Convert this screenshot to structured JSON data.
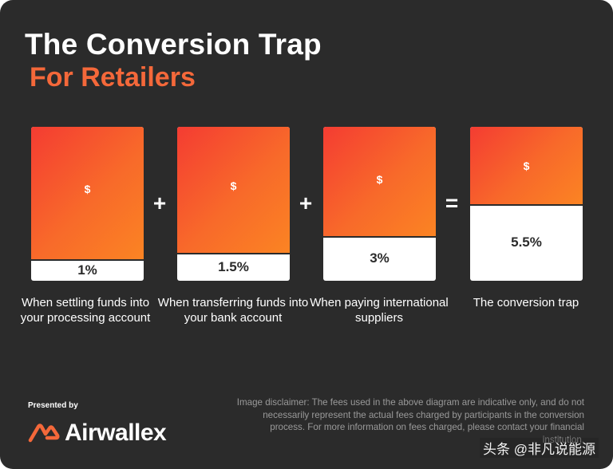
{
  "title": "The Conversion Trap",
  "subtitle": "For Retailers",
  "steps": [
    {
      "symbol": "$",
      "percent": "1%",
      "caption": "When settling funds into your processing account",
      "fee_level": 0.86
    },
    {
      "symbol": "$",
      "percent": "1.5%",
      "caption": "When transferring funds into your bank account",
      "fee_level": 0.82
    },
    {
      "symbol": "$",
      "percent": "3%",
      "caption": "When paying international suppliers",
      "fee_level": 0.71
    },
    {
      "symbol": "$",
      "percent": "5.5%",
      "caption": "The conversion trap",
      "fee_level": 0.5
    }
  ],
  "operators": [
    "+",
    "+",
    "="
  ],
  "footer": {
    "presented_by": "Presented by",
    "brand": "Airwallex",
    "brand_color": "#f4683a",
    "disclaimer": "Image disclaimer: The fees used in the above diagram are indicative only, and do not necessarily represent the actual fees charged by participants in the conversion process. For more information on fees charged, please contact your financial institution.",
    "watermark": "头条 @非凡说能源"
  },
  "colors": {
    "background": "#2b2b2b",
    "accent": "#f4683a",
    "gradient_start": "#f43c32",
    "gradient_end": "#fb8423"
  }
}
